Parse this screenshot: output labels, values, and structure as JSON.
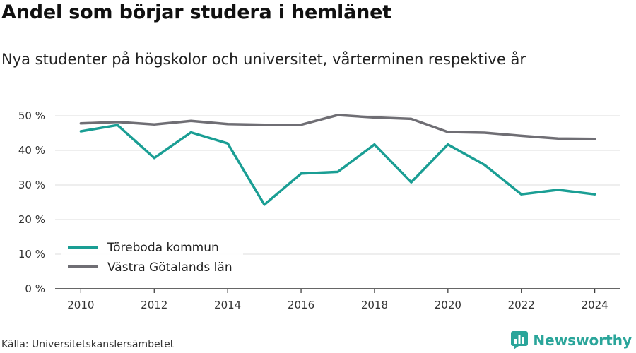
{
  "title": "Andel som börjar studera i hemlänet",
  "subtitle": "Nya studenter på högskolor och universitet, vårterminen respektive år",
  "source": "Källa: Universitetskanslersämbetet",
  "brand": "Newsworthy",
  "colors": {
    "teal": "#1a9e94",
    "gray": "#6f6e74",
    "grid": "#dddddd",
    "axis": "#333333",
    "brand": "#2aa59a"
  },
  "chart_data": {
    "type": "line",
    "x": [
      2010,
      2011,
      2012,
      2013,
      2014,
      2015,
      2016,
      2017,
      2018,
      2019,
      2020,
      2021,
      2022,
      2023,
      2024
    ],
    "xticks": [
      2010,
      2012,
      2014,
      2016,
      2018,
      2020,
      2022,
      2024
    ],
    "yticks": [
      0,
      10,
      20,
      30,
      40,
      50
    ],
    "ytick_labels": [
      "0 %",
      "10 %",
      "20 %",
      "30 %",
      "40 %",
      "50 %"
    ],
    "ylim": [
      0,
      50
    ],
    "xlabel": "",
    "ylabel": "",
    "grid": true,
    "legend_position": "bottom-left",
    "series": [
      {
        "name": "Töreboda kommun",
        "color": "#1a9e94",
        "values": [
          45.5,
          47.3,
          37.8,
          45.2,
          42.0,
          24.3,
          33.3,
          33.8,
          41.7,
          30.8,
          41.7,
          35.8,
          27.3,
          28.6,
          27.3
        ]
      },
      {
        "name": "Västra Götalands län",
        "color": "#6f6e74",
        "values": [
          47.8,
          48.2,
          47.5,
          48.5,
          47.6,
          47.4,
          47.4,
          50.2,
          49.5,
          49.1,
          45.3,
          45.1,
          44.2,
          43.4,
          43.3
        ]
      }
    ]
  }
}
